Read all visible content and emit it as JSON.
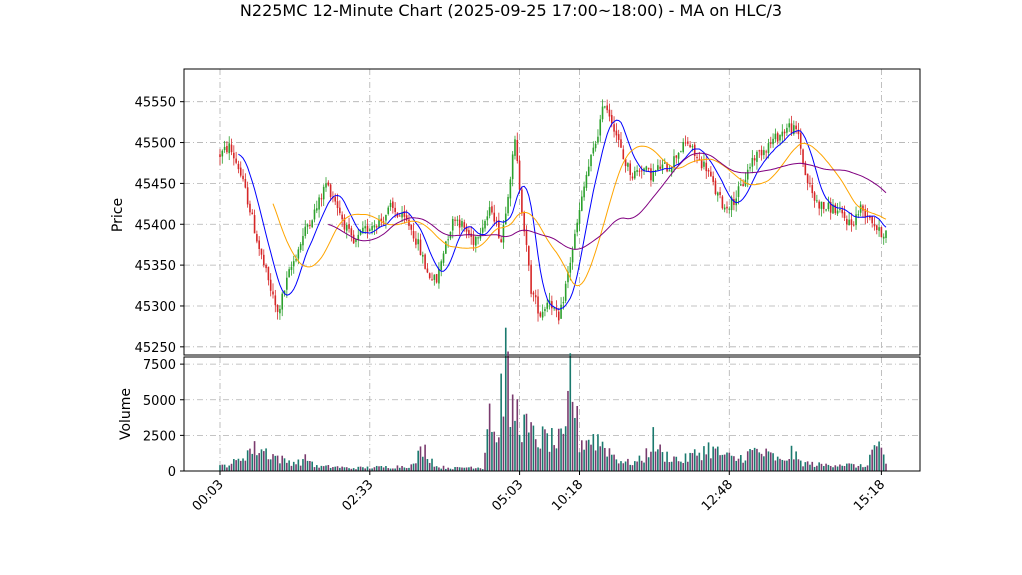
{
  "chart_data": {
    "type": "candlestick",
    "title": "N225MC 12-Minute Chart (2025-09-25 17:00~18:00) - MA on HLC/3",
    "price_panel": {
      "ylabel": "Price",
      "ylim": [
        45240,
        45590
      ],
      "yticks": [
        45250,
        45300,
        45350,
        45400,
        45450,
        45500,
        45550
      ],
      "grid": true,
      "up_color": "#2ca02c",
      "down_color": "#d62728"
    },
    "volume_panel": {
      "ylabel": "Volume",
      "ylim": [
        0,
        8000
      ],
      "yticks": [
        0,
        2500,
        5000,
        7500
      ],
      "ytick_labels": [
        "0",
        "2500",
        "5000",
        "7500"
      ],
      "bar_colors": [
        "#1a7a6e",
        "#7a3b6e"
      ],
      "grid": true
    },
    "x_ticks": [
      "00:03",
      "02:33",
      "05:03",
      "10:18",
      "12:48",
      "15:18"
    ],
    "price_anchors": [
      [
        0,
        45485
      ],
      [
        4,
        45495
      ],
      [
        8,
        45470
      ],
      [
        12,
        45430
      ],
      [
        17,
        45370
      ],
      [
        21,
        45330
      ],
      [
        25,
        45290
      ],
      [
        30,
        45340
      ],
      [
        34,
        45370
      ],
      [
        38,
        45400
      ],
      [
        42,
        45420
      ],
      [
        46,
        45450
      ],
      [
        50,
        45430
      ],
      [
        54,
        45400
      ],
      [
        58,
        45375
      ],
      [
        62,
        45390
      ],
      [
        66,
        45400
      ],
      [
        70,
        45405
      ],
      [
        74,
        45420
      ],
      [
        78,
        45410
      ],
      [
        82,
        45400
      ],
      [
        86,
        45375
      ],
      [
        90,
        45340
      ],
      [
        94,
        45330
      ],
      [
        98,
        45380
      ],
      [
        102,
        45410
      ],
      [
        106,
        45395
      ],
      [
        110,
        45380
      ],
      [
        114,
        45400
      ],
      [
        118,
        45420
      ],
      [
        122,
        45380
      ],
      [
        125,
        45440
      ],
      [
        128,
        45500
      ],
      [
        131,
        45420
      ],
      [
        135,
        45320
      ],
      [
        139,
        45290
      ],
      [
        143,
        45310
      ],
      [
        147,
        45280
      ],
      [
        151,
        45340
      ],
      [
        155,
        45400
      ],
      [
        159,
        45460
      ],
      [
        163,
        45500
      ],
      [
        167,
        45550
      ],
      [
        171,
        45520
      ],
      [
        175,
        45480
      ],
      [
        179,
        45460
      ],
      [
        183,
        45470
      ],
      [
        187,
        45460
      ],
      [
        191,
        45470
      ],
      [
        195,
        45470
      ],
      [
        199,
        45490
      ],
      [
        203,
        45500
      ],
      [
        207,
        45480
      ],
      [
        211,
        45470
      ],
      [
        215,
        45440
      ],
      [
        219,
        45420
      ],
      [
        223,
        45430
      ],
      [
        227,
        45450
      ],
      [
        231,
        45480
      ],
      [
        235,
        45490
      ],
      [
        239,
        45500
      ],
      [
        243,
        45510
      ],
      [
        247,
        45520
      ],
      [
        251,
        45510
      ],
      [
        254,
        45460
      ],
      [
        258,
        45430
      ],
      [
        262,
        45420
      ],
      [
        266,
        45420
      ],
      [
        270,
        45410
      ],
      [
        274,
        45400
      ],
      [
        278,
        45420
      ],
      [
        282,
        45410
      ],
      [
        286,
        45390
      ],
      [
        289,
        45390
      ]
    ],
    "volume_anchors": [
      [
        0,
        300
      ],
      [
        8,
        700
      ],
      [
        12,
        1400
      ],
      [
        17,
        1600
      ],
      [
        22,
        1200
      ],
      [
        28,
        700
      ],
      [
        34,
        600
      ],
      [
        38,
        900
      ],
      [
        42,
        300
      ],
      [
        50,
        300
      ],
      [
        56,
        200
      ],
      [
        66,
        250
      ],
      [
        76,
        300
      ],
      [
        84,
        400
      ],
      [
        88,
        1700
      ],
      [
        94,
        300
      ],
      [
        102,
        200
      ],
      [
        110,
        300
      ],
      [
        114,
        200
      ],
      [
        117,
        4800
      ],
      [
        120,
        1800
      ],
      [
        122,
        5200
      ],
      [
        124,
        7700
      ],
      [
        126,
        4000
      ],
      [
        128,
        4300
      ],
      [
        131,
        3500
      ],
      [
        134,
        2600
      ],
      [
        138,
        2300
      ],
      [
        142,
        2200
      ],
      [
        146,
        2000
      ],
      [
        150,
        2200
      ],
      [
        152,
        7000
      ],
      [
        156,
        2000
      ],
      [
        160,
        2300
      ],
      [
        164,
        2200
      ],
      [
        168,
        1600
      ],
      [
        172,
        900
      ],
      [
        176,
        600
      ],
      [
        180,
        600
      ],
      [
        184,
        900
      ],
      [
        188,
        2200
      ],
      [
        192,
        1100
      ],
      [
        196,
        1000
      ],
      [
        200,
        700
      ],
      [
        204,
        1000
      ],
      [
        208,
        1300
      ],
      [
        212,
        1600
      ],
      [
        216,
        1300
      ],
      [
        220,
        1000
      ],
      [
        224,
        800
      ],
      [
        228,
        1100
      ],
      [
        232,
        1400
      ],
      [
        236,
        1200
      ],
      [
        240,
        1000
      ],
      [
        244,
        600
      ],
      [
        248,
        1300
      ],
      [
        252,
        600
      ],
      [
        256,
        500
      ],
      [
        262,
        400
      ],
      [
        268,
        500
      ],
      [
        274,
        400
      ],
      [
        280,
        300
      ],
      [
        285,
        2000
      ],
      [
        289,
        400
      ]
    ],
    "moving_averages": [
      {
        "color": "#0000ff",
        "window": 9
      },
      {
        "color": "#ffa500",
        "window": 24
      },
      {
        "color": "#800080",
        "window": 48
      }
    ],
    "num_bars": 290
  }
}
